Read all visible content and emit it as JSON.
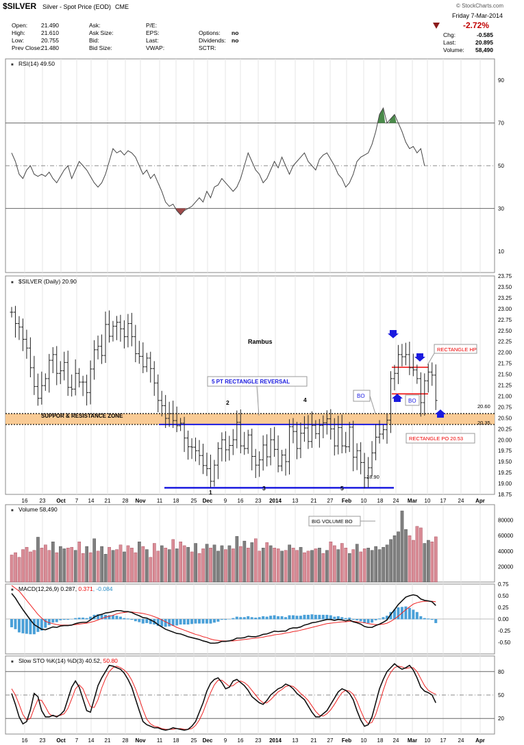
{
  "header": {
    "symbol": "$SILVER",
    "name": "Silver - Spot Price (EOD)",
    "exchange": "CME",
    "copyright": "© StockCharts.com",
    "date": "Friday   7-Mar-2014",
    "change_pct": "-2.72%",
    "fields": [
      {
        "label": "Open:",
        "value": "21.490"
      },
      {
        "label": "High:",
        "value": "21.610"
      },
      {
        "label": "Low:",
        "value": "20.755"
      },
      {
        "label": "Prev Close:",
        "value": "21.480"
      }
    ],
    "fields2": [
      {
        "label": "Ask:",
        "value": ""
      },
      {
        "label": "Ask Size:",
        "value": ""
      },
      {
        "label": "Bid:",
        "value": ""
      },
      {
        "label": "Bid Size:",
        "value": ""
      }
    ],
    "fields3": [
      {
        "label": "P/E:",
        "value": ""
      },
      {
        "label": "EPS:",
        "value": ""
      },
      {
        "label": "Last:",
        "value": ""
      },
      {
        "label": "VWAP:",
        "value": ""
      }
    ],
    "fields4": [
      {
        "label": "",
        "value": ""
      },
      {
        "label": "Options:",
        "value": "no"
      },
      {
        "label": "Dividends:",
        "value": "no"
      },
      {
        "label": "SCTR:",
        "value": ""
      }
    ],
    "right_fields": [
      {
        "label": "Chg:",
        "value": "-0.585"
      },
      {
        "label": "Last:",
        "value": "20.895"
      },
      {
        "label": "Volume:",
        "value": "58,490"
      }
    ]
  },
  "chart_data": [
    {
      "type": "line",
      "title": "RSI(14) 49.50",
      "ylim": [
        0,
        100
      ],
      "yticks": [
        90,
        70,
        50,
        30,
        10
      ],
      "reference_lines": [
        70,
        50,
        30
      ],
      "values": [
        56,
        52,
        46,
        44,
        48,
        50,
        46,
        45,
        46,
        45,
        47,
        44,
        42,
        45,
        48,
        50,
        44,
        48,
        52,
        50,
        48,
        45,
        42,
        40,
        42,
        46,
        52,
        58,
        56,
        57,
        55,
        57,
        56,
        54,
        50,
        46,
        48,
        44,
        46,
        42,
        38,
        33,
        31,
        32,
        29,
        27,
        29,
        30,
        31,
        33,
        35,
        33,
        38,
        35,
        40,
        41,
        44,
        42,
        40,
        38,
        40,
        44,
        50,
        56,
        52,
        48,
        46,
        42,
        44,
        48,
        52,
        49,
        54,
        50,
        46,
        50,
        52,
        54,
        56,
        52,
        50,
        48,
        53,
        55,
        56,
        53,
        50,
        46,
        44,
        40,
        42,
        46,
        52,
        54,
        55,
        56,
        60,
        66,
        74,
        77,
        70,
        72,
        74,
        70,
        66,
        61,
        58,
        59,
        56,
        58,
        50
      ]
    },
    {
      "type": "bar",
      "title": "$SILVER (Daily) 20.90",
      "ylim": [
        18.75,
        23.75
      ],
      "yticks": [
        23.75,
        23.5,
        23.25,
        23.0,
        22.75,
        22.5,
        22.25,
        22.0,
        21.75,
        21.5,
        21.25,
        21.0,
        20.75,
        20.5,
        20.25,
        20.0,
        19.75,
        19.5,
        19.25,
        19.0,
        18.75
      ],
      "close": [
        22.92,
        22.66,
        22.58,
        22.3,
        22.1,
        21.65,
        21.22,
        20.95,
        21.24,
        21.4,
        21.82,
        21.95,
        21.52,
        21.58,
        21.77,
        21.2,
        21.16,
        21.52,
        21.32,
        21.32,
        21.08,
        21.62,
        22.06,
        22.14,
        21.93,
        22.64,
        22.37,
        22.6,
        22.69,
        22.54,
        22.36,
        22.66,
        22.36,
        21.97,
        21.91,
        21.67,
        21.87,
        21.63,
        21.3,
        20.9,
        20.78,
        20.49,
        20.6,
        20.44,
        20.32,
        20.38,
        20.04,
        19.84,
        19.83,
        19.75,
        19.64,
        19.41,
        19.34,
        19.05,
        19.42,
        19.8,
        20.0,
        19.77,
        19.87,
        20.0,
        20.4,
        19.86,
        19.8,
        20.11,
        19.62,
        19.42,
        19.54,
        19.88,
        19.61,
        20.0,
        19.78,
        19.4,
        19.65,
        19.5,
        20.3,
        20.19,
        19.8,
        20.15,
        20.27,
        19.96,
        20.33,
        20.14,
        20.33,
        20.39,
        20.48,
        20.25,
        19.86,
        20.28,
        19.86,
        19.84,
        20.29,
        19.6,
        19.75,
        19.48,
        19.13,
        19.36,
        19.7,
        20.06,
        20.13,
        20.23,
        20.45,
        21.4,
        21.52,
        21.95,
        21.9,
        21.95,
        21.65,
        21.6,
        21.4,
        20.85,
        21.35,
        21.55,
        21.48,
        20.9
      ],
      "annotations": [
        {
          "text": "Rambus"
        },
        {
          "text": "5 PT RECTANGLE REVERSAL"
        },
        {
          "text": "SUPPOR & RESISTANCE ZONE"
        },
        {
          "text": "RECTANGLE HP"
        },
        {
          "text": "RECTANGLE PO 20.53"
        },
        {
          "text": "BO"
        },
        {
          "text": "BO"
        },
        {
          "text": "20.60"
        },
        {
          "text": "20.35"
        },
        {
          "text": "18.90"
        },
        {
          "text": "1"
        },
        {
          "text": "2"
        },
        {
          "text": "3"
        },
        {
          "text": "4"
        },
        {
          "text": "5"
        }
      ],
      "levels": {
        "zone_top": 20.6,
        "zone_bottom": 20.35,
        "rect_top": 20.35,
        "rect_bottom": 18.9,
        "rect_hp": 21.66,
        "rect_low": 21.05
      },
      "x_ticks": [
        "16",
        "23",
        "Oct",
        "7",
        "14",
        "21",
        "28",
        "Nov",
        "11",
        "18",
        "25",
        "Dec",
        "9",
        "16",
        "23",
        "2014",
        "13",
        "21",
        "27",
        "Feb",
        "10",
        "18",
        "24",
        "Mar",
        "10",
        "17",
        "24",
        "Apr"
      ]
    },
    {
      "type": "bar",
      "title": "Volume 58,490",
      "yticks": [
        80000,
        60000,
        40000,
        20000
      ],
      "annotation": "BIG VOLUME BO",
      "values": [
        35000,
        38000,
        32000,
        42000,
        45000,
        39000,
        41000,
        58000,
        44000,
        48000,
        41000,
        52000,
        38000,
        46000,
        43000,
        44000,
        45000,
        41000,
        52000,
        37000,
        46000,
        38000,
        56000,
        40000,
        46000,
        36000,
        45000,
        41000,
        42000,
        48000,
        39000,
        47000,
        44000,
        38000,
        52000,
        46000,
        42000,
        32000,
        50000,
        40000,
        47000,
        44000,
        42000,
        55000,
        43000,
        52000,
        47000,
        45000,
        39000,
        50000,
        37000,
        43000,
        49000,
        44000,
        48000,
        40000,
        47000,
        42000,
        47000,
        43000,
        59000,
        46000,
        53000,
        44000,
        51000,
        56000,
        40000,
        44000,
        51000,
        47000,
        44000,
        43000,
        40000,
        41000,
        48000,
        44000,
        41000,
        45000,
        38000,
        40000,
        41000,
        43000,
        44000,
        37000,
        41000,
        52000,
        47000,
        42000,
        50000,
        44000,
        37000,
        42000,
        49000,
        39000,
        43000,
        44000,
        41000,
        46000,
        42000,
        45000,
        48000,
        55000,
        60000,
        65000,
        92000,
        68000,
        60000,
        54000,
        72000,
        70000,
        50000,
        54000,
        52000,
        58490
      ],
      "up": [
        0,
        0,
        0,
        0,
        0,
        0,
        0,
        1,
        0,
        0,
        0,
        1,
        0,
        1,
        1,
        0,
        0,
        1,
        0,
        0,
        1,
        0,
        1,
        0,
        1,
        1,
        0,
        1,
        0,
        0,
        1,
        0,
        0,
        0,
        1,
        0,
        1,
        0,
        0,
        0,
        1,
        0,
        1,
        0,
        1,
        0,
        0,
        1,
        0,
        1,
        0,
        0,
        1,
        0,
        1,
        1,
        1,
        0,
        1,
        0,
        1,
        0,
        1,
        0,
        1,
        0,
        0,
        1,
        0,
        1,
        0,
        0,
        1,
        0,
        1,
        0,
        0,
        1,
        0,
        0,
        1,
        0,
        1,
        0,
        1,
        0,
        0,
        1,
        0,
        0,
        1,
        0,
        1,
        0,
        0,
        1,
        1,
        1,
        1,
        1,
        1,
        1,
        1,
        1,
        1,
        1,
        0,
        0,
        0,
        0,
        1,
        1,
        0,
        0
      ]
    },
    {
      "type": "line",
      "title": "MACD(12,26,9) 0.287, 0.371, -0.084",
      "title_parts": [
        "MACD(12,26,9)",
        "0.287",
        "0.371",
        "-0.084"
      ],
      "ylim": [
        -0.75,
        0.75
      ],
      "yticks": [
        "0.75",
        "0.50",
        "0.25",
        "0.00",
        "-0.25",
        "-0.50"
      ],
      "series": [
        {
          "name": "0.287",
          "values": [
            0.55,
            0.45,
            0.32,
            0.2,
            0.09,
            -0.02,
            -0.12,
            -0.17,
            -0.22,
            -0.23,
            -0.2,
            -0.17,
            -0.18,
            -0.15,
            -0.14,
            -0.14,
            -0.13,
            -0.1,
            -0.08,
            -0.07,
            -0.07,
            -0.02,
            0.04,
            0.08,
            0.1,
            0.13,
            0.14,
            0.16,
            0.18,
            0.18,
            0.16,
            0.16,
            0.14,
            0.1,
            0.07,
            0.03,
            0.02,
            -0.02,
            -0.06,
            -0.12,
            -0.17,
            -0.22,
            -0.25,
            -0.28,
            -0.31,
            -0.32,
            -0.35,
            -0.38,
            -0.4,
            -0.42,
            -0.44,
            -0.47,
            -0.49,
            -0.52,
            -0.52,
            -0.51,
            -0.48,
            -0.48,
            -0.47,
            -0.45,
            -0.41,
            -0.41,
            -0.4,
            -0.37,
            -0.38,
            -0.38,
            -0.36,
            -0.33,
            -0.32,
            -0.29,
            -0.26,
            -0.27,
            -0.26,
            -0.26,
            -0.21,
            -0.19,
            -0.19,
            -0.17,
            -0.13,
            -0.11,
            -0.08,
            -0.07,
            -0.05,
            -0.03,
            -0.01,
            -0.01,
            -0.03,
            -0.01,
            -0.02,
            -0.04,
            -0.02,
            -0.06,
            -0.08,
            -0.11,
            -0.16,
            -0.18,
            -0.18,
            -0.14,
            -0.11,
            -0.07,
            -0.02,
            0.1,
            0.2,
            0.31,
            0.39,
            0.47,
            0.5,
            0.52,
            0.5,
            0.43,
            0.4,
            0.39,
            0.37,
            0.29
          ]
        },
        {
          "name": "0.371",
          "values": [
            0.72,
            0.66,
            0.6,
            0.5,
            0.4,
            0.3,
            0.2,
            0.1,
            0.02,
            -0.05,
            -0.08,
            -0.1,
            -0.12,
            -0.13,
            -0.13,
            -0.13,
            -0.13,
            -0.12,
            -0.11,
            -0.1,
            -0.09,
            -0.07,
            -0.05,
            -0.02,
            0.01,
            0.04,
            0.06,
            0.08,
            0.11,
            0.13,
            0.14,
            0.15,
            0.15,
            0.14,
            0.13,
            0.12,
            0.1,
            0.08,
            0.05,
            0.02,
            -0.02,
            -0.06,
            -0.1,
            -0.14,
            -0.18,
            -0.21,
            -0.24,
            -0.27,
            -0.3,
            -0.33,
            -0.35,
            -0.38,
            -0.4,
            -0.43,
            -0.45,
            -0.46,
            -0.47,
            -0.47,
            -0.47,
            -0.47,
            -0.46,
            -0.45,
            -0.44,
            -0.43,
            -0.42,
            -0.41,
            -0.4,
            -0.39,
            -0.37,
            -0.36,
            -0.34,
            -0.33,
            -0.32,
            -0.3,
            -0.29,
            -0.27,
            -0.26,
            -0.24,
            -0.22,
            -0.2,
            -0.18,
            -0.16,
            -0.14,
            -0.12,
            -0.1,
            -0.09,
            -0.08,
            -0.07,
            -0.06,
            -0.06,
            -0.05,
            -0.05,
            -0.06,
            -0.07,
            -0.08,
            -0.1,
            -0.11,
            -0.12,
            -0.12,
            -0.11,
            -0.09,
            -0.05,
            0.0,
            0.06,
            0.13,
            0.2,
            0.26,
            0.32,
            0.35,
            0.37,
            0.38,
            0.38,
            0.38,
            0.37
          ]
        }
      ]
    },
    {
      "type": "line",
      "title": "Slow STO %K(14) %D(3) 40.52, 50.80",
      "title_parts": [
        "Slow STO %K(14) %D(3)",
        "40.52",
        "50.80"
      ],
      "ylim": [
        0,
        100
      ],
      "yticks": [
        80,
        50,
        20
      ],
      "reference_lines": [
        80,
        50,
        20
      ],
      "series": [
        {
          "name": "40.52",
          "values": [
            52,
            38,
            22,
            13,
            16,
            31,
            52,
            48,
            30,
            22,
            22,
            24,
            22,
            25,
            30,
            45,
            60,
            68,
            60,
            45,
            30,
            28,
            45,
            62,
            72,
            80,
            88,
            87,
            85,
            83,
            78,
            70,
            60,
            45,
            30,
            16,
            12,
            10,
            8,
            8,
            6,
            5,
            6,
            8,
            7,
            6,
            5,
            6,
            10,
            16,
            28,
            40,
            55,
            65,
            70,
            72,
            66,
            58,
            60,
            68,
            70,
            66,
            62,
            56,
            48,
            44,
            40,
            38,
            43,
            50,
            54,
            58,
            60,
            64,
            62,
            58,
            52,
            48,
            44,
            36,
            28,
            22,
            22,
            26,
            30,
            38,
            46,
            54,
            58,
            56,
            52,
            44,
            30,
            18,
            10,
            12,
            22,
            40,
            58,
            70,
            80,
            85,
            90,
            86,
            83,
            85,
            88,
            82,
            72,
            60,
            55,
            53,
            50,
            40
          ]
        },
        {
          "name": "50.80",
          "values": [
            58,
            50,
            38,
            25,
            18,
            20,
            33,
            44,
            43,
            35,
            26,
            23,
            23,
            24,
            26,
            33,
            45,
            58,
            63,
            58,
            46,
            35,
            34,
            44,
            59,
            71,
            80,
            85,
            87,
            85,
            82,
            77,
            69,
            58,
            45,
            31,
            19,
            13,
            10,
            9,
            7,
            6,
            6,
            6,
            7,
            7,
            6,
            6,
            7,
            11,
            18,
            28,
            41,
            53,
            63,
            69,
            69,
            65,
            61,
            62,
            66,
            68,
            66,
            62,
            56,
            50,
            44,
            40,
            40,
            44,
            49,
            54,
            57,
            61,
            62,
            61,
            57,
            52,
            48,
            43,
            36,
            29,
            24,
            23,
            26,
            31,
            38,
            46,
            53,
            56,
            55,
            51,
            42,
            30,
            19,
            13,
            15,
            25,
            40,
            56,
            70,
            79,
            85,
            87,
            86,
            84,
            85,
            85,
            80,
            71,
            62,
            56,
            53,
            51
          ]
        }
      ]
    }
  ]
}
